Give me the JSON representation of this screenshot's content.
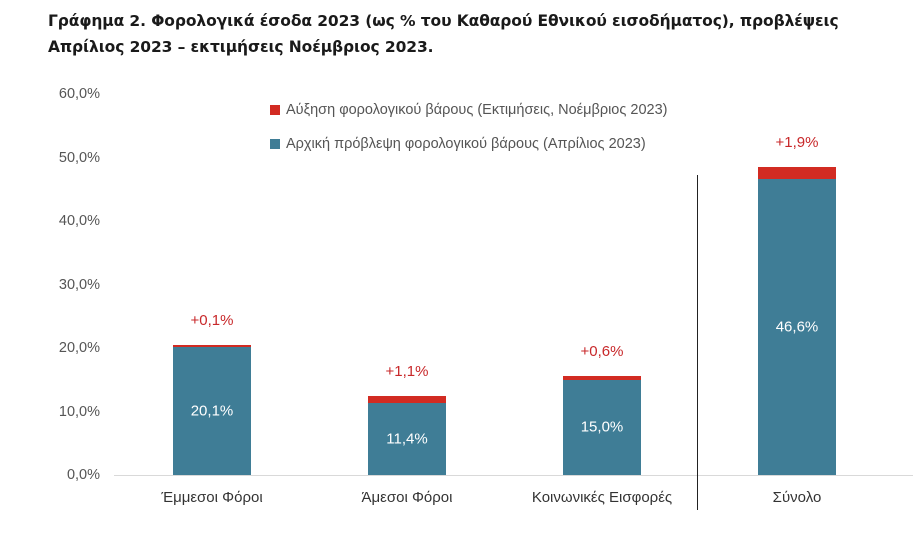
{
  "title": {
    "line1": "Γράφημα 2. Φορολογικά έσοδα 2023 (ως % του Καθαρού Εθνικού εισοδήματος), προβλέψεις",
    "line2": "Απρίλιος 2023 – εκτιμήσεις Νοέμβριος 2023."
  },
  "legend": [
    {
      "label": "Αύξηση φορολογικού βάρους (Εκτιμήσεις, Νοέμβριος 2023)",
      "color": "#d22b22"
    },
    {
      "label": "Αρχική πρόβλεψη φορολογικού βάρους (Απρίλιος 2023)",
      "color": "#3f7d96"
    }
  ],
  "yaxis": {
    "ticks": [
      "60,0%",
      "50,0%",
      "40,0%",
      "30,0%",
      "20,0%",
      "10,0%",
      "0,0%"
    ]
  },
  "bars": [
    {
      "category": "Έμμεσοι Φόροι",
      "base": 20.1,
      "base_label": "20,1%",
      "increase": 0.1,
      "increase_label": "+0,1%"
    },
    {
      "category": "Άμεσοι Φόροι",
      "base": 11.4,
      "base_label": "11,4%",
      "increase": 1.1,
      "increase_label": "+1,1%"
    },
    {
      "category": "Κοινωνικές Εισφορές",
      "base": 15.0,
      "base_label": "15,0%",
      "increase": 0.6,
      "increase_label": "+0,6%"
    },
    {
      "category": "Σύνολο",
      "base": 46.6,
      "base_label": "46,6%",
      "increase": 1.9,
      "increase_label": "+1,9%"
    }
  ],
  "colors": {
    "base": "#3f7d96",
    "increase": "#d22b22",
    "increase_text": "#c8282a"
  },
  "chart_data": {
    "type": "bar",
    "stacked": true,
    "title": "Γράφημα 2. Φορολογικά έσοδα 2023 (ως % του Καθαρού Εθνικού εισοδήματος), προβλέψεις Απρίλιος 2023 – εκτιμήσεις Νοέμβριος 2023.",
    "categories": [
      "Έμμεσοι Φόροι",
      "Άμεσοι Φόροι",
      "Κοινωνικές Εισφορές",
      "Σύνολο"
    ],
    "series": [
      {
        "name": "Αρχική πρόβλεψη φορολογικού βάρους (Απρίλιος 2023)",
        "values": [
          20.1,
          11.4,
          15.0,
          46.6
        ],
        "color": "#3f7d96"
      },
      {
        "name": "Αύξηση φορολογικού βάρους (Εκτιμήσεις, Νοέμβριος 2023)",
        "values": [
          0.1,
          1.1,
          0.6,
          1.9
        ],
        "color": "#d22b22"
      }
    ],
    "xlabel": "",
    "ylabel": "",
    "ylim": [
      0,
      60
    ],
    "yticks": [
      0,
      10,
      20,
      30,
      40,
      50,
      60
    ],
    "grid": false,
    "legend_position": "top-center",
    "annotations": [
      "Vertical separator line between Κοινωνικές Εισφορές and Σύνολο"
    ]
  }
}
